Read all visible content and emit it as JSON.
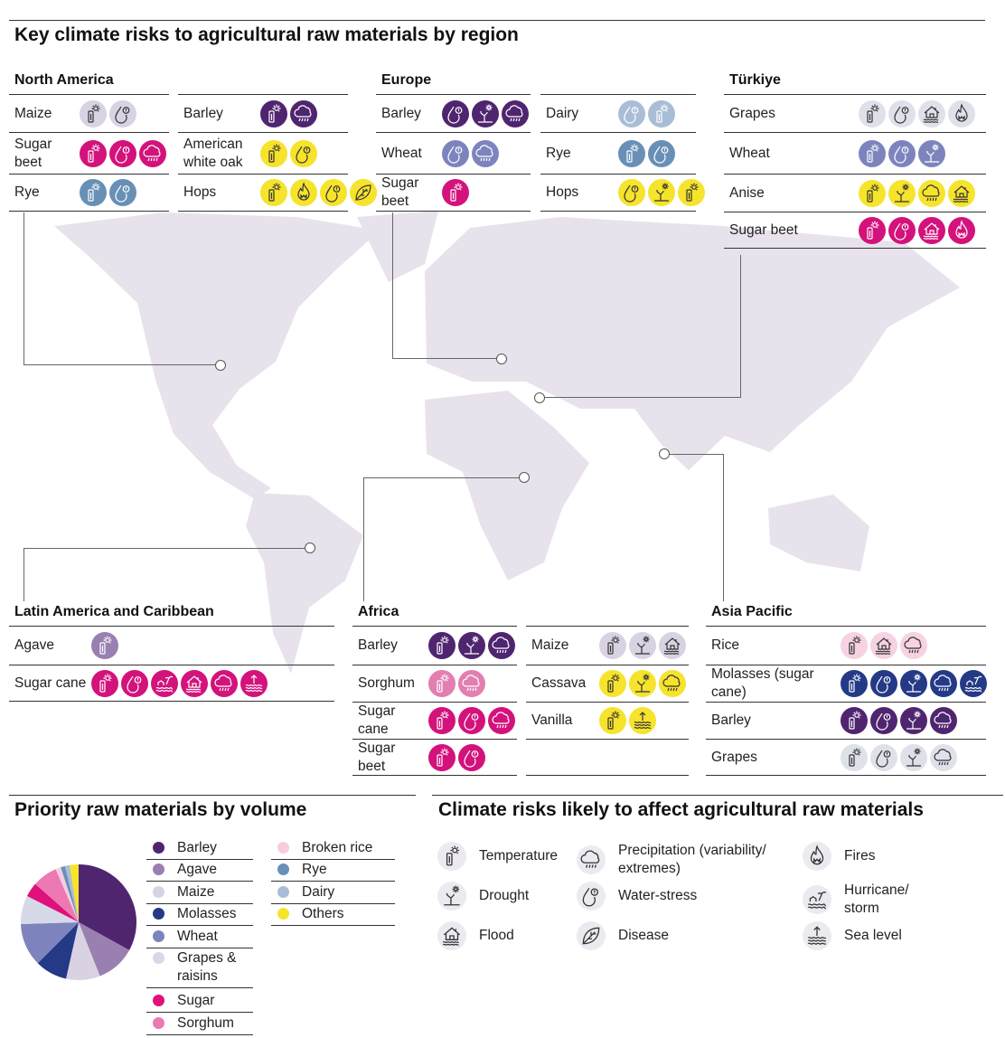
{
  "title": "Key climate risks to agricultural raw materials by region",
  "colors": {
    "barley": "#4f2570",
    "agave": "#9a7fb1",
    "maize": "#d9d2e2",
    "molasses": "#243a87",
    "wheat": "#7d84bd",
    "grapes": "#dfe1ea",
    "sugar": "#d3127b",
    "sorghum": "#e27fb0",
    "rice": "#f6d2e2",
    "rye": "#6890b7",
    "dairy": "#a9bed6",
    "yellow": "#f6e32c"
  },
  "regions": [
    {
      "title": "North America",
      "columns": [
        {
          "rows": [
            {
              "name": "Maize",
              "color": "maize",
              "risks": [
                "temperature",
                "water-stress"
              ]
            },
            {
              "name": "Sugar beet",
              "color": "sugar",
              "risks": [
                "temperature",
                "water-stress",
                "precipitation"
              ]
            },
            {
              "name": "Rye",
              "color": "rye",
              "risks": [
                "temperature",
                "water-stress"
              ]
            }
          ]
        },
        {
          "rows": [
            {
              "name": "Barley",
              "color": "barley",
              "risks": [
                "temperature",
                "precipitation"
              ]
            },
            {
              "name": "American white oak",
              "color": "yellow",
              "risks": [
                "temperature",
                "water-stress"
              ]
            },
            {
              "name": "Hops",
              "color": "yellow",
              "risks": [
                "temperature",
                "fires",
                "water-stress",
                "disease"
              ]
            }
          ]
        }
      ]
    },
    {
      "title": "Europe",
      "columns": [
        {
          "rows": [
            {
              "name": "Barley",
              "color": "barley",
              "risks": [
                "water-stress",
                "drought",
                "precipitation"
              ]
            },
            {
              "name": "Wheat",
              "color": "wheat",
              "risks": [
                "water-stress",
                "precipitation"
              ]
            },
            {
              "name": "Sugar beet",
              "color": "sugar",
              "risks": [
                "temperature"
              ]
            }
          ]
        },
        {
          "rows": [
            {
              "name": "Dairy",
              "color": "dairy",
              "risks": [
                "water-stress",
                "temperature"
              ]
            },
            {
              "name": "Rye",
              "color": "rye",
              "risks": [
                "temperature",
                "water-stress"
              ]
            },
            {
              "name": "Hops",
              "color": "yellow",
              "risks": [
                "water-stress",
                "drought",
                "temperature"
              ]
            }
          ]
        }
      ]
    },
    {
      "title": "Türkiye",
      "columns": [
        {
          "rows": [
            {
              "name": "Grapes",
              "color": "grapes",
              "risks": [
                "temperature",
                "water-stress",
                "flood",
                "fires"
              ]
            },
            {
              "name": "Wheat",
              "color": "wheat",
              "risks": [
                "temperature",
                "water-stress",
                "drought"
              ]
            },
            {
              "name": "Anise",
              "color": "yellow",
              "risks": [
                "temperature",
                "drought",
                "precipitation",
                "flood"
              ]
            },
            {
              "name": "Sugar beet",
              "color": "sugar",
              "risks": [
                "temperature",
                "water-stress",
                "flood",
                "fires"
              ]
            }
          ]
        }
      ]
    },
    {
      "title": "Latin America and Caribbean",
      "columns": [
        {
          "rows": [
            {
              "name": "Agave",
              "color": "agave",
              "risks": [
                "temperature"
              ]
            },
            {
              "name": "Sugar cane",
              "color": "sugar",
              "risks": [
                "temperature",
                "water-stress",
                "hurricane",
                "flood",
                "precipitation",
                "sea-level"
              ]
            }
          ]
        }
      ]
    },
    {
      "title": "Africa",
      "columns": [
        {
          "rows": [
            {
              "name": "Barley",
              "color": "barley",
              "risks": [
                "temperature",
                "drought",
                "precipitation"
              ]
            },
            {
              "name": "Sorghum",
              "color": "sorghum",
              "risks": [
                "temperature",
                "precipitation"
              ]
            },
            {
              "name": "Sugar cane",
              "color": "sugar",
              "risks": [
                "temperature",
                "water-stress",
                "precipitation"
              ]
            },
            {
              "name": "Sugar beet",
              "color": "sugar",
              "risks": [
                "temperature",
                "water-stress"
              ]
            }
          ]
        },
        {
          "rows": [
            {
              "name": "Maize",
              "color": "maize",
              "risks": [
                "temperature",
                "drought",
                "flood"
              ]
            },
            {
              "name": "Cassava",
              "color": "yellow",
              "risks": [
                "temperature",
                "drought",
                "precipitation"
              ]
            },
            {
              "name": "Vanilla",
              "color": "yellow",
              "risks": [
                "temperature",
                "sea-level"
              ]
            },
            {
              "name": "",
              "color": "",
              "risks": []
            }
          ]
        }
      ]
    },
    {
      "title": "Asia Pacific",
      "columns": [
        {
          "rows": [
            {
              "name": "Rice",
              "color": "rice",
              "risks": [
                "temperature",
                "flood",
                "precipitation"
              ]
            },
            {
              "name": "Molasses (sugar cane)",
              "color": "molasses",
              "risks": [
                "temperature",
                "water-stress",
                "drought",
                "precipitation",
                "hurricane"
              ]
            },
            {
              "name": "Barley",
              "color": "barley",
              "risks": [
                "temperature",
                "water-stress",
                "drought",
                "precipitation"
              ]
            },
            {
              "name": "Grapes",
              "color": "grapes",
              "risks": [
                "temperature",
                "water-stress",
                "drought",
                "precipitation"
              ]
            }
          ]
        }
      ]
    }
  ],
  "chart_data": {
    "type": "pie",
    "title": "Priority raw materials by volume",
    "categories": [
      "Barley",
      "Agave",
      "Maize",
      "Molasses",
      "Wheat",
      "Grapes & raisins",
      "Sugar",
      "Sorghum",
      "Broken rice",
      "Rye",
      "Dairy",
      "Others"
    ],
    "values": [
      33,
      11,
      9.5,
      9,
      12,
      8,
      4,
      7,
      1.5,
      1.2,
      1.3,
      2.5
    ],
    "unit": "approx. % share of volume",
    "colors": [
      "#4f2570",
      "#9a7fb1",
      "#d9d2e2",
      "#243a87",
      "#7d84bd",
      "#d6d9e8",
      "#e0117a",
      "#ec79b3",
      "#f6cde0",
      "#6890b7",
      "#a9bed6",
      "#f6e32c"
    ],
    "legend_placement": "right"
  },
  "risk_legend": {
    "title": "Climate risks likely to affect agricultural raw materials",
    "items": [
      {
        "key": "temperature",
        "label": "Temperature"
      },
      {
        "key": "precipitation",
        "label": "Precipitation (variability/ extremes)"
      },
      {
        "key": "fires",
        "label": "Fires"
      },
      {
        "key": "drought",
        "label": "Drought"
      },
      {
        "key": "water-stress",
        "label": "Water-stress"
      },
      {
        "key": "hurricane",
        "label": "Hurricane/ storm"
      },
      {
        "key": "flood",
        "label": "Flood"
      },
      {
        "key": "disease",
        "label": "Disease"
      },
      {
        "key": "sea-level",
        "label": "Sea level"
      }
    ]
  }
}
